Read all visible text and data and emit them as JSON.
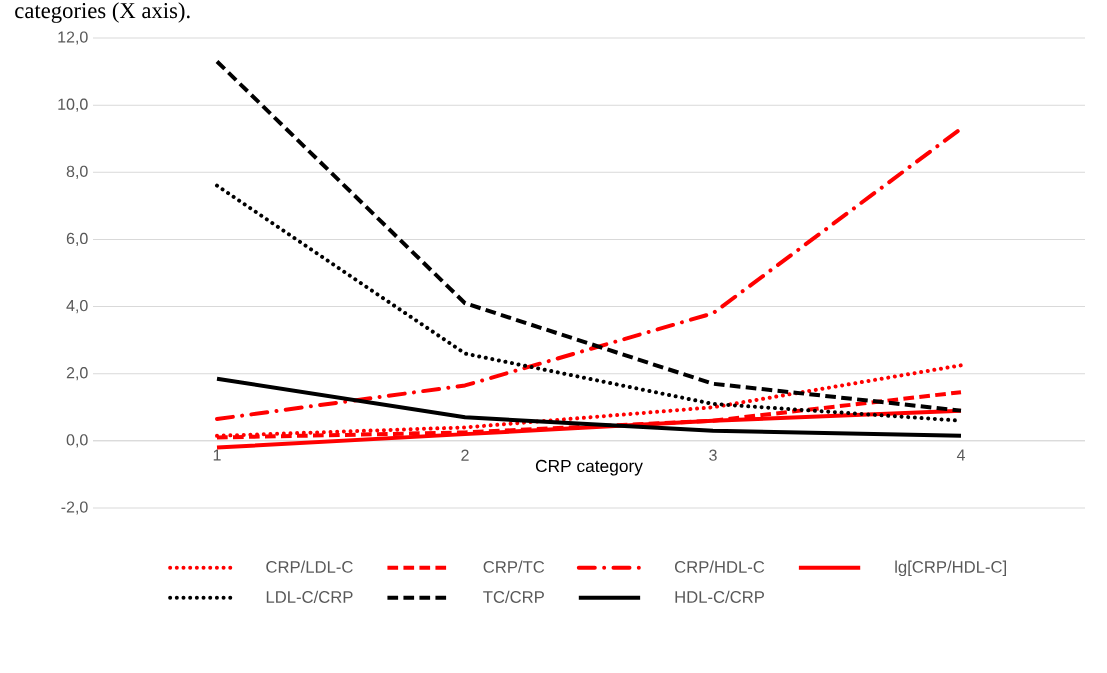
{
  "chart_data": {
    "type": "line",
    "annotations": [
      "categories (X axis)."
    ],
    "xlabel": "CRP category",
    "categories": [
      "1",
      "2",
      "3",
      "4"
    ],
    "ylim": [
      -2,
      12
    ],
    "yticks": [
      {
        "value": -2,
        "label": "-2,0"
      },
      {
        "value": 0,
        "label": "0,0"
      },
      {
        "value": 2,
        "label": "2,0"
      },
      {
        "value": 4,
        "label": "4,0"
      },
      {
        "value": 6,
        "label": "6,0"
      },
      {
        "value": 8,
        "label": "8,0"
      },
      {
        "value": 10,
        "label": "10,0"
      },
      {
        "value": 12,
        "label": "12,0"
      }
    ],
    "grid": "y",
    "legend": "bottom",
    "series": [
      {
        "name": "CRP/LDL-C",
        "color": "#ff0000",
        "line_style": "dotted",
        "values": [
          0.15,
          0.4,
          1.0,
          2.25
        ]
      },
      {
        "name": "CRP/TC",
        "color": "#ff0000",
        "line_style": "dashed",
        "values": [
          0.1,
          0.25,
          0.6,
          1.45
        ]
      },
      {
        "name": "CRP/HDL-C",
        "color": "#ff0000",
        "line_style": "dashdot",
        "values": [
          0.65,
          1.65,
          3.8,
          9.3
        ]
      },
      {
        "name": "lg[CRP/HDL-C]",
        "color": "#ff0000",
        "line_style": "solid",
        "values": [
          -0.2,
          0.2,
          0.6,
          0.9
        ]
      },
      {
        "name": "LDL-C/CRP",
        "color": "#000000",
        "line_style": "dotted",
        "values": [
          7.6,
          2.6,
          1.1,
          0.6
        ]
      },
      {
        "name": "TC/CRP",
        "color": "#000000",
        "line_style": "dashed",
        "values": [
          11.3,
          4.1,
          1.7,
          0.9
        ]
      },
      {
        "name": "HDL-C/CRP",
        "color": "#000000",
        "line_style": "solid",
        "values": [
          1.85,
          0.7,
          0.3,
          0.15
        ]
      }
    ]
  }
}
